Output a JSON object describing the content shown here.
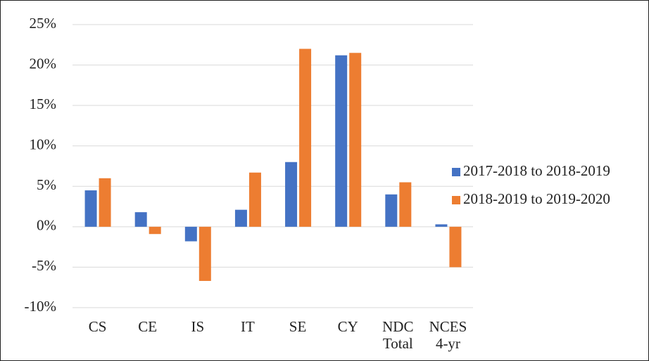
{
  "chart_data": {
    "type": "bar",
    "categories": [
      "CS",
      "CE",
      "IS",
      "IT",
      "SE",
      "CY",
      "NDC Total",
      "NCES 4-yr"
    ],
    "series": [
      {
        "name": "2017-2018 to 2018-2019",
        "color": "#4472c4",
        "values": [
          4.5,
          1.8,
          -1.8,
          2.1,
          8.0,
          21.2,
          4.0,
          0.3
        ]
      },
      {
        "name": "2018-2019 to 2019-2020",
        "color": "#ed7d31",
        "values": [
          6.0,
          -0.9,
          -6.7,
          6.7,
          22.0,
          21.5,
          5.5,
          -5.0
        ]
      }
    ],
    "ylim": [
      -10,
      25
    ],
    "yticks": [
      {
        "value": -10,
        "label": "-10%"
      },
      {
        "value": -5,
        "label": "-5%"
      },
      {
        "value": 0,
        "label": "0%"
      },
      {
        "value": 5,
        "label": "5%"
      },
      {
        "value": 10,
        "label": "10%"
      },
      {
        "value": 15,
        "label": "15%"
      },
      {
        "value": 20,
        "label": "20%"
      },
      {
        "value": 25,
        "label": "25%"
      }
    ],
    "grid": true,
    "legend": "right"
  }
}
